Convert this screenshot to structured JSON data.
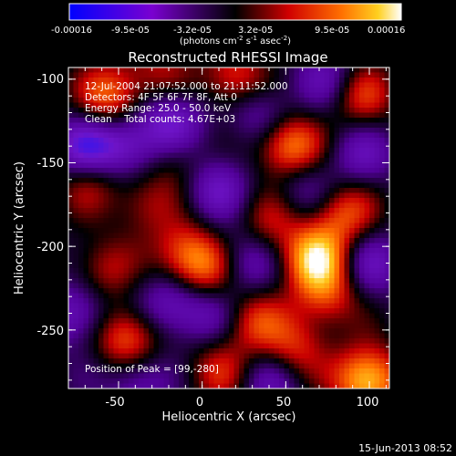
{
  "chart_data": {
    "type": "heatmap",
    "title": "Reconstructed RHESSI Image",
    "xlabel": "Heliocentric X (arcsec)",
    "ylabel": "Heliocentric Y (arcsec)",
    "xlim": [
      -80,
      112
    ],
    "ylim": [
      -285,
      -93
    ],
    "x_ticks": [
      "-50",
      "0",
      "50",
      "100"
    ],
    "y_ticks": [
      "-100",
      "-150",
      "-200",
      "-250"
    ],
    "x_tick_values": [
      -50,
      0,
      50,
      100
    ],
    "y_tick_values": [
      -100,
      -150,
      -200,
      -250
    ],
    "colorbar": {
      "tick_labels": [
        "-0.00016",
        "-9.5e-05",
        "-3.2e-05",
        "3.2e-05",
        "9.5e-05",
        "0.00016"
      ],
      "tick_values": [
        -0.00016,
        -9.5e-05,
        -3.2e-05,
        3.2e-05,
        9.5e-05,
        0.00016
      ],
      "range": [
        -0.00016,
        0.00016
      ],
      "units_html": "(photons cm<tspan baseline-shift='super' font-size='7'>-2</tspan> s<tspan baseline-shift='super' font-size='7'>-1</tspan> asec<tspan baseline-shift='super' font-size='7'>-2</tspan>)"
    },
    "annotations": [
      "12-Jul-2004 21:07:52.000 to 21:11:52.000",
      "Detectors: 4F 5F 6F 7F 8F, Att 0",
      "Energy Range: 25.0 - 50.0 keV",
      "Clean    Total counts: 4.67E+03"
    ],
    "peak_label": "Position of Peak = [99,-280]",
    "peak": [
      99,
      -280
    ],
    "sources": [
      {
        "x": 99,
        "y": -280,
        "v": 1.0
      },
      {
        "x": 68,
        "y": -207,
        "v": 0.95
      },
      {
        "x": 52,
        "y": -140,
        "v": 0.85
      },
      {
        "x": 20,
        "y": -100,
        "v": 0.6
      },
      {
        "x": -10,
        "y": -205,
        "v": 0.6
      },
      {
        "x": 5,
        "y": -215,
        "v": 0.55
      },
      {
        "x": -55,
        "y": -110,
        "v": 0.7
      },
      {
        "x": -45,
        "y": -255,
        "v": 0.75
      },
      {
        "x": -68,
        "y": -160,
        "v": 0.45
      },
      {
        "x": -35,
        "y": -175,
        "v": 0.35
      },
      {
        "x": 30,
        "y": -245,
        "v": 0.55
      },
      {
        "x": 55,
        "y": -262,
        "v": 0.5
      },
      {
        "x": 85,
        "y": -180,
        "v": 0.6
      },
      {
        "x": 95,
        "y": -110,
        "v": 0.55
      },
      {
        "x": 40,
        "y": -185,
        "v": 0.4
      },
      {
        "x": -15,
        "y": -150,
        "v": 0.3
      },
      {
        "x": -60,
        "y": -215,
        "v": 0.4
      },
      {
        "x": 10,
        "y": -275,
        "v": 0.45
      },
      {
        "x": 75,
        "y": -230,
        "v": 0.5
      },
      {
        "x": -25,
        "y": -95,
        "v": 0.35
      },
      {
        "x": -45,
        "y": -140,
        "v": -0.55
      },
      {
        "x": -70,
        "y": -142,
        "v": -0.7
      },
      {
        "x": -18,
        "y": -125,
        "v": -0.6
      },
      {
        "x": 8,
        "y": -165,
        "v": -0.5
      },
      {
        "x": 25,
        "y": -210,
        "v": -0.5
      },
      {
        "x": 35,
        "y": -120,
        "v": -0.45
      },
      {
        "x": 75,
        "y": -100,
        "v": -0.4
      },
      {
        "x": -75,
        "y": -240,
        "v": -0.55
      },
      {
        "x": -20,
        "y": -235,
        "v": -0.5
      },
      {
        "x": 5,
        "y": -240,
        "v": -0.4
      },
      {
        "x": 60,
        "y": -165,
        "v": -0.35
      },
      {
        "x": 95,
        "y": -145,
        "v": -0.4
      },
      {
        "x": 100,
        "y": -210,
        "v": -0.45
      },
      {
        "x": 40,
        "y": -280,
        "v": -0.4
      },
      {
        "x": -40,
        "y": -280,
        "v": -0.45
      }
    ]
  },
  "footer": {
    "timestamp": "15-Jun-2013 08:52"
  }
}
